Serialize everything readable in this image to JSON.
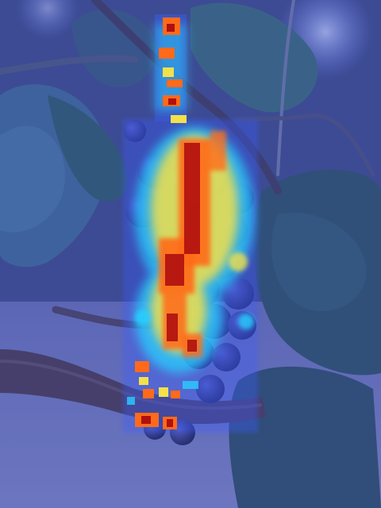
{
  "image": {
    "subject": "grape-cluster-on-vine",
    "overlay": "attention-heatmap",
    "colors": {
      "tint": "#3d4fb0",
      "sky_glow": "#8fa6ff",
      "leaf_dark": "#2c4a6c",
      "leaf_mid": "#3b6a86",
      "bark": "#4a3a4a",
      "grape": "#2a2d6e",
      "heat_low": "#3a5cff",
      "heat_mid": "#27d0ff",
      "heat_warm": "#f3e04a",
      "heat_hot": "#ff6a1a",
      "heat_max": "#b01010"
    }
  }
}
